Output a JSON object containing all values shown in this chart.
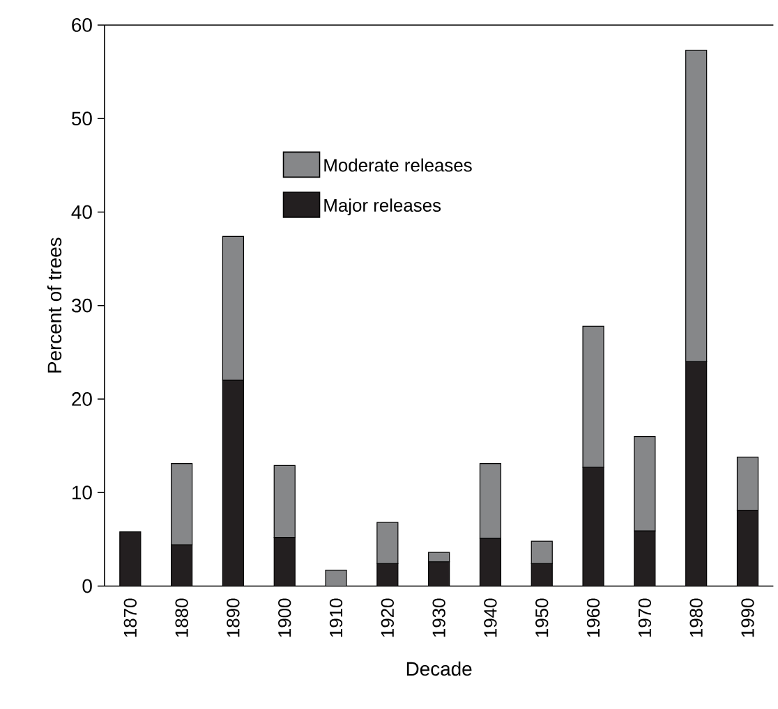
{
  "chart_data": {
    "type": "bar",
    "stacked": true,
    "xlabel": "Decade",
    "ylabel": "Percent of trees",
    "categories": [
      "1870",
      "1880",
      "1890",
      "1900",
      "1910",
      "1920",
      "1930",
      "1940",
      "1950",
      "1960",
      "1970",
      "1980",
      "1990"
    ],
    "series": [
      {
        "name": "Major releases",
        "color": "#231f20",
        "values": [
          5.8,
          4.4,
          22.0,
          5.2,
          0,
          2.4,
          2.6,
          5.1,
          2.4,
          12.7,
          5.9,
          24.0,
          8.1
        ]
      },
      {
        "name": "Moderate releases",
        "color": "#868789",
        "values": [
          0,
          8.7,
          15.4,
          7.7,
          1.7,
          4.4,
          1.0,
          8.0,
          2.4,
          15.1,
          10.1,
          33.3,
          5.7
        ]
      }
    ],
    "ylim": [
      0,
      60
    ],
    "yticks": [
      0,
      10,
      20,
      30,
      40,
      50,
      60
    ],
    "legend": "top",
    "grid": false
  }
}
